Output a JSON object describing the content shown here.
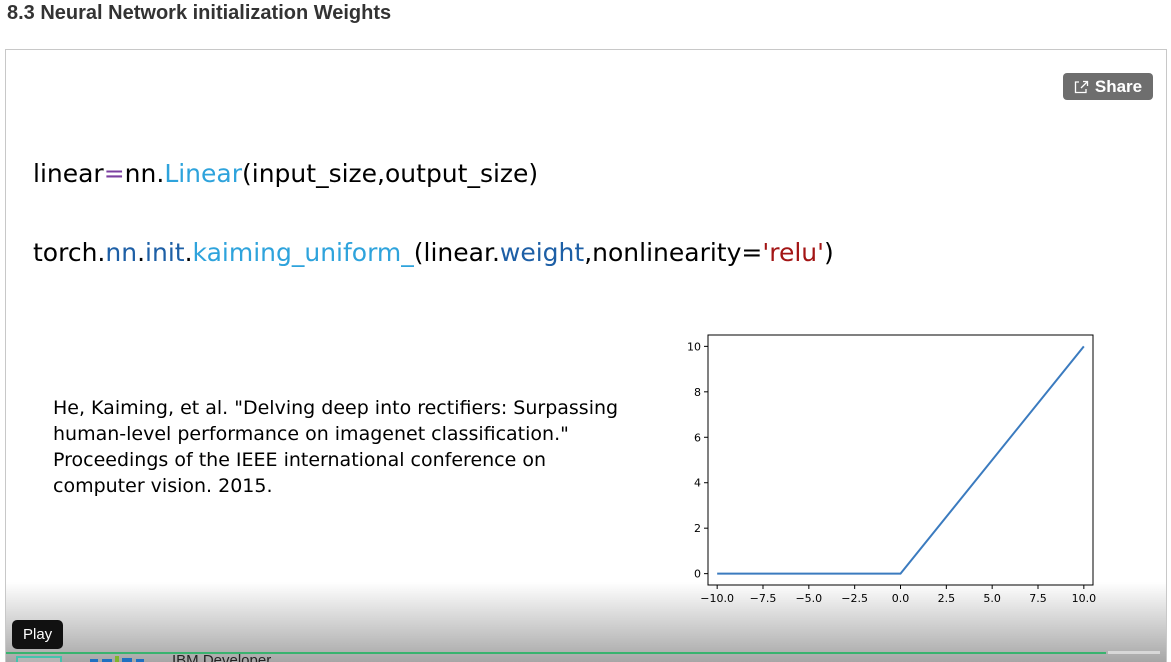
{
  "page": {
    "title": "8.3 Neural Network initialization Weights"
  },
  "player": {
    "share_label": "Share",
    "tooltip": "Play",
    "channel_name": "IBM Developer"
  },
  "slide": {
    "code_line_1": {
      "a": "linear",
      "b": "=",
      "c": "nn.",
      "d": "Linear",
      "e": "(input_size,output_size)"
    },
    "code_line_2": {
      "a": "torch.",
      "b": "nn",
      "c": ".",
      "d": "init",
      "e": ".",
      "f": "kaiming_uniform_",
      "g": "(linear.",
      "h": "weight",
      "i": ",nonlinearity=",
      "j": "'relu'",
      "k": ")"
    },
    "citation": "He, Kaiming, et al. \"Delving deep into rectifiers: Surpassing human-level performance on imagenet classification.\" Proceedings of the IEEE international conference on computer vision. 2015."
  },
  "colors": {
    "keyword_purple": "#7b3fa0",
    "identifier_light_blue": "#2ea3dc",
    "identifier_dark_blue": "#1d5fa6",
    "string_red": "#a31515",
    "line_series": "#3b7bbf",
    "progress": "#39b36f"
  },
  "icons": {
    "share": "share-external-icon",
    "logo": "ibm-developer-logo"
  },
  "chart_data": {
    "type": "line",
    "title": "",
    "xlabel": "",
    "ylabel": "",
    "x": [
      -10.0,
      0.0,
      10.0
    ],
    "y": [
      0,
      0,
      10
    ],
    "xlim": [
      -10.5,
      10.5
    ],
    "ylim": [
      -0.5,
      10.5
    ],
    "xticks": [
      -10.0,
      -7.5,
      -5.0,
      -2.5,
      0.0,
      2.5,
      5.0,
      7.5,
      10.0
    ],
    "xtick_labels": [
      "−10.0",
      "−7.5",
      "−5.0",
      "−2.5",
      "0.0",
      "2.5",
      "5.0",
      "7.5",
      "10.0"
    ],
    "yticks": [
      0,
      2,
      4,
      6,
      8,
      10
    ],
    "ytick_labels": [
      "0",
      "2",
      "4",
      "6",
      "8",
      "10"
    ],
    "grid": false,
    "legend": "none"
  }
}
